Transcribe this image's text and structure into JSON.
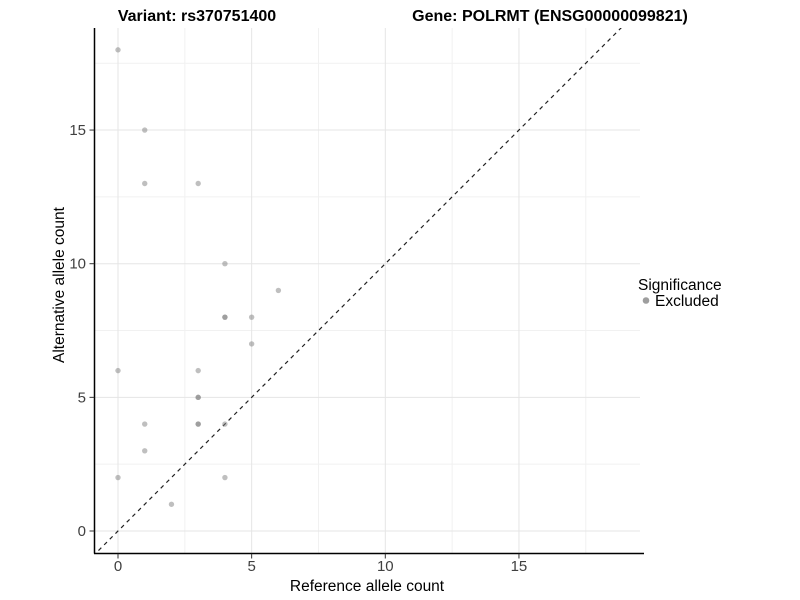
{
  "chart_data": {
    "type": "scatter",
    "title_left": "Variant: rs370751400",
    "title_right": "Gene: POLRMT (ENSG00000099821)",
    "xlabel": "Reference allele count",
    "ylabel": "Alternative allele count",
    "xticks": [
      0,
      5,
      10,
      15
    ],
    "yticks": [
      0,
      5,
      10,
      15
    ],
    "x_minor": [
      2.5,
      7.5,
      12.5,
      17.5
    ],
    "y_minor": [
      2.5,
      7.5,
      12.5,
      17.5
    ],
    "xlim": [
      -0.9,
      19.5
    ],
    "ylim": [
      -0.8,
      18.8
    ],
    "grid": true,
    "identity_line": {
      "slope": 1,
      "intercept": 0,
      "style": "dashed",
      "color": "#222222"
    },
    "series": [
      {
        "name": "Excluded",
        "color": "#808080",
        "opacity": 0.5,
        "points": [
          [
            0,
            18
          ],
          [
            1,
            15
          ],
          [
            1,
            13
          ],
          [
            3,
            13
          ],
          [
            4,
            10
          ],
          [
            6,
            9
          ],
          [
            4,
            8
          ],
          [
            4,
            8
          ],
          [
            5,
            8
          ],
          [
            5,
            7
          ],
          [
            0,
            6
          ],
          [
            3,
            6
          ],
          [
            3,
            5
          ],
          [
            3,
            5
          ],
          [
            1,
            4
          ],
          [
            3,
            4
          ],
          [
            3,
            4
          ],
          [
            4,
            4
          ],
          [
            1,
            3
          ],
          [
            0,
            2
          ],
          [
            4,
            2
          ],
          [
            2,
            1
          ]
        ]
      }
    ],
    "legend": {
      "title": "Significance",
      "position": "right",
      "items": [
        {
          "label": "Excluded",
          "color": "#9e9e9e"
        }
      ]
    },
    "colors": {
      "grid_major": "#e5e5e5",
      "grid_minor": "#f1f1f1",
      "axis_line": "#000000",
      "tick_mark": "#333333",
      "tick_label": "#404040"
    }
  }
}
